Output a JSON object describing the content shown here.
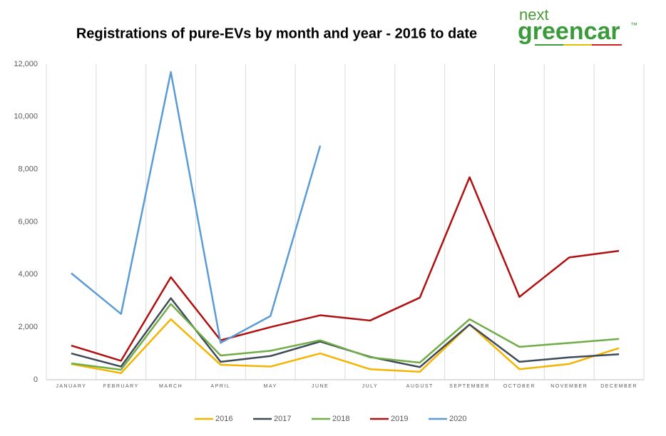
{
  "chart_data": {
    "type": "line",
    "title": "Registrations of pure-EVs by month and year - 2016 to date",
    "categories": [
      "JANUARY",
      "FEBRUARY",
      "MARCH",
      "APRIL",
      "MAY",
      "JUNE",
      "JULY",
      "AUGUST",
      "SEPTEMBER",
      "OCTOBER",
      "NOVEMBER",
      "DECEMBER"
    ],
    "series": [
      {
        "name": "2016",
        "color": "#f4b400",
        "values": [
          600,
          250,
          2300,
          570,
          500,
          1000,
          400,
          300,
          2100,
          400,
          600,
          1200
        ]
      },
      {
        "name": "2017",
        "color": "#3d4a57",
        "values": [
          1000,
          500,
          3100,
          680,
          900,
          1450,
          870,
          480,
          2100,
          680,
          850,
          970
        ]
      },
      {
        "name": "2018",
        "color": "#70ad47",
        "values": [
          620,
          380,
          2880,
          920,
          1100,
          1500,
          850,
          650,
          2300,
          1250,
          1400,
          1550
        ]
      },
      {
        "name": "2019",
        "color": "#b01010",
        "values": [
          1300,
          720,
          3900,
          1500,
          2000,
          2450,
          2250,
          3120,
          7700,
          3150,
          4650,
          4900
        ]
      },
      {
        "name": "2020",
        "color": "#5b9bd5",
        "values": [
          4050,
          2500,
          11700,
          1400,
          2420,
          8900,
          null,
          null,
          null,
          null,
          null,
          null
        ]
      }
    ],
    "ylim": [
      0,
      12000
    ],
    "yticks": [
      0,
      {
        "value": 2000,
        "label": "2,000"
      },
      {
        "value": 4000,
        "label": "4,000"
      },
      {
        "value": 6000,
        "label": "6,000"
      },
      {
        "value": 8000,
        "label": "8,000"
      },
      {
        "value": 10000,
        "label": "10,000"
      },
      {
        "value": 12000,
        "label": "12,000"
      }
    ],
    "grid": true,
    "legend": "bottom"
  },
  "logo": {
    "small": "next",
    "brand": "greencar",
    "mark": "™"
  }
}
